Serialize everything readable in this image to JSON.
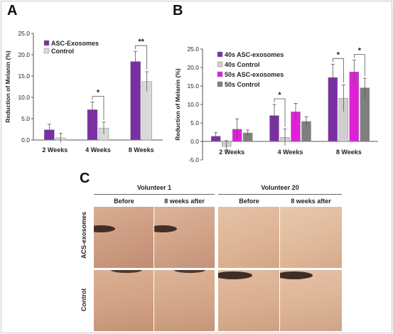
{
  "panels": {
    "a": "A",
    "b": "B",
    "c": "C"
  },
  "chartA": {
    "type": "bar",
    "ylabel": "Reduction of Melanin (%)",
    "ylim": [
      0,
      25
    ],
    "yticks": [
      "0.0",
      "5.0",
      "10.0",
      "15.0",
      "20.0",
      "25.0"
    ],
    "categories": [
      "2 Weeks",
      "4 Weeks",
      "8 Weeks"
    ],
    "series": [
      {
        "name": "ASC-Exosomes",
        "color": "#7b2fa5",
        "values": [
          2.4,
          7.1,
          18.4
        ],
        "errors": [
          1.3,
          1.8,
          2.4
        ]
      },
      {
        "name": "Control",
        "color": "#d9d9d9",
        "values": [
          0.5,
          2.8,
          13.7
        ],
        "errors": [
          1.1,
          1.4,
          2.3
        ]
      }
    ],
    "annotations": [
      {
        "category": 1,
        "label": "*"
      },
      {
        "category": 2,
        "label": "**"
      }
    ],
    "legend_position": "top-left"
  },
  "chartB": {
    "type": "bar",
    "ylabel": "Reduction of Melanin (%)",
    "ylim": [
      -5,
      25
    ],
    "yticks": [
      "-5.0",
      "0.0",
      "5.0",
      "10.0",
      "15.0",
      "20.0",
      "25.0"
    ],
    "categories": [
      "2 Weeks",
      "4 Weeks",
      "8 Weeks"
    ],
    "series": [
      {
        "name": "40s ASC-exosomes",
        "color": "#7b2fa5",
        "values": [
          1.4,
          7.0,
          17.3
        ],
        "errors": [
          1.0,
          3.0,
          3.6
        ]
      },
      {
        "name": "40s Control",
        "color": "#cfcfcf",
        "values": [
          -1.4,
          1.1,
          11.7
        ],
        "errors": [
          1.6,
          2.3,
          3.6
        ]
      },
      {
        "name": "50s ASC-exosomes",
        "color": "#e020d8",
        "values": [
          3.3,
          8.0,
          18.8
        ],
        "errors": [
          2.8,
          2.3,
          3.2
        ]
      },
      {
        "name": "50s Control",
        "color": "#7f7f7f",
        "values": [
          2.3,
          5.4,
          14.5
        ],
        "errors": [
          0.8,
          1.3,
          2.6
        ]
      }
    ],
    "annotations": [
      {
        "category": 1,
        "pair": [
          0,
          1
        ],
        "label": "*"
      },
      {
        "category": 2,
        "pair": [
          0,
          1
        ],
        "label": "*"
      },
      {
        "category": 2,
        "pair": [
          2,
          3
        ],
        "label": "*"
      }
    ],
    "legend_position": "top-left"
  },
  "panelC": {
    "volunteers": [
      "Volunteer 1",
      "Volunteer 20"
    ],
    "timepoints": [
      "Before",
      "8 weeks after",
      "Before",
      "8 weeks after"
    ],
    "rows": [
      "ACS-exosomes",
      "Control"
    ]
  }
}
